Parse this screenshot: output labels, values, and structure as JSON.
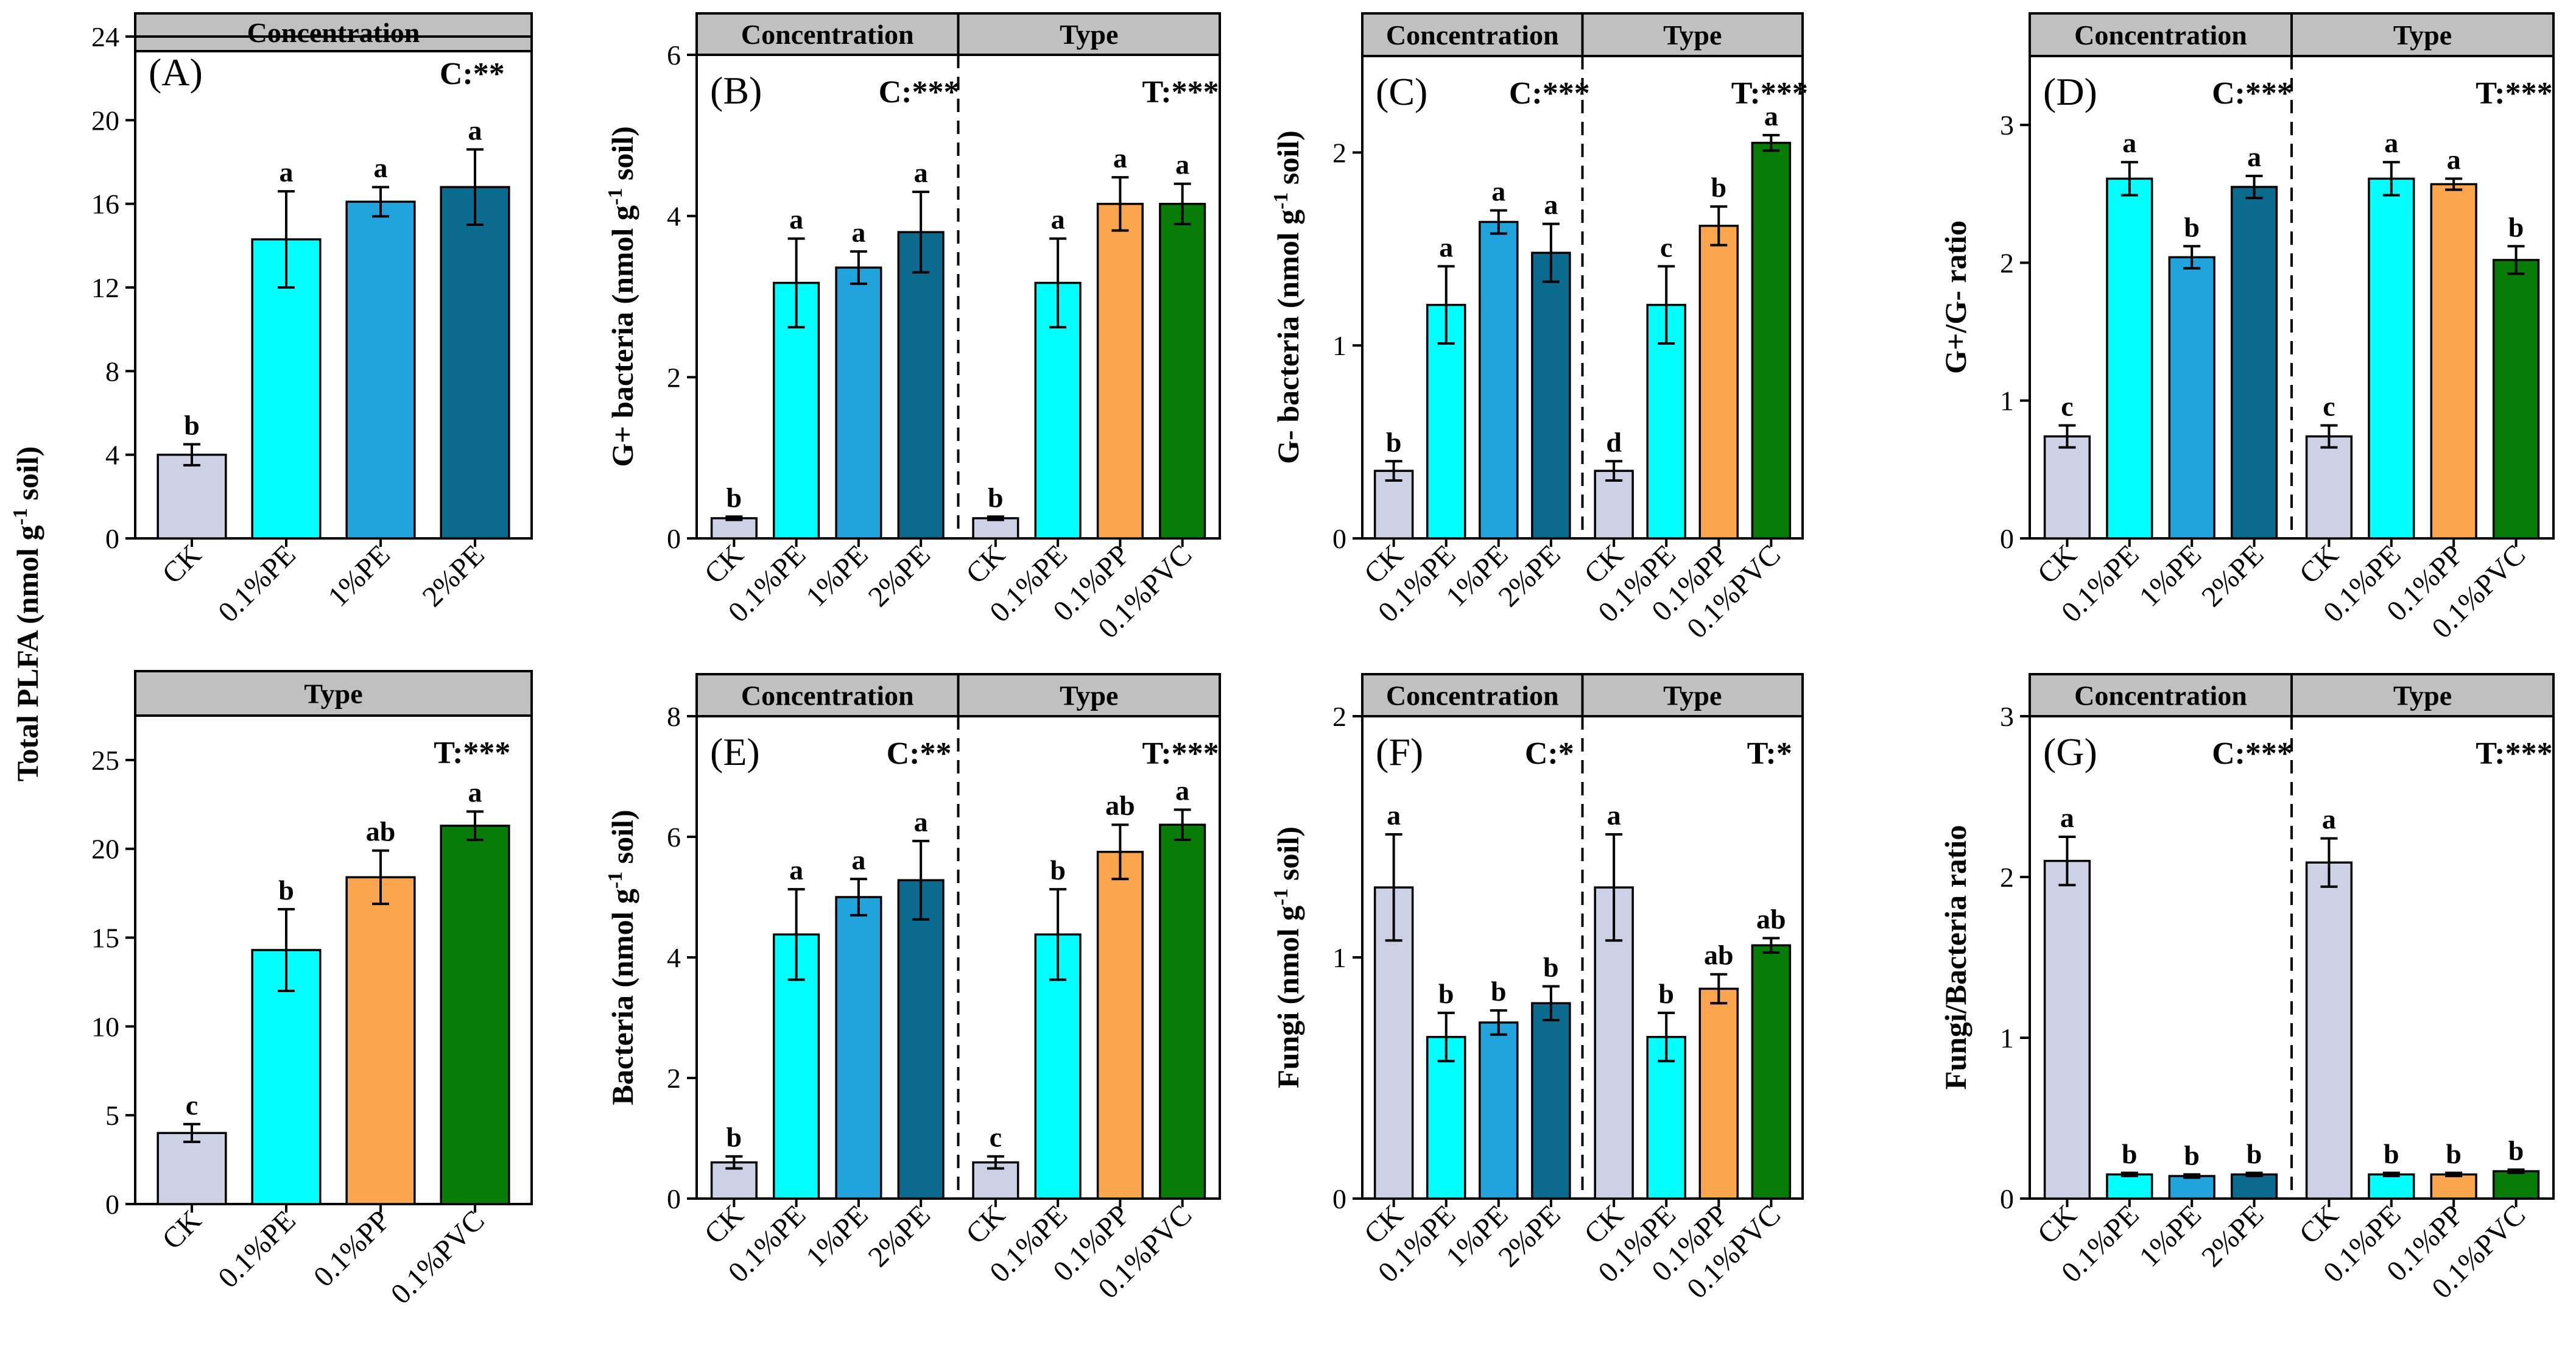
{
  "figure_texts": {
    "shared_ylabel": "Total PLFA (nmol g",
    "shared_ylabel_sup": "-1",
    "shared_ylabel_tail": " soil)"
  },
  "colors": {
    "CK": "#cdd1e6",
    "0.1%PE": "#00ffff",
    "1%PE": "#21a3de",
    "2%PE": "#0b6b8e",
    "0.1%PP": "#fba54f",
    "0.1%PVC": "#077c07",
    "header": "#c0c0c0"
  },
  "chart_data": [
    {
      "id": "A",
      "type": "bar",
      "panel_label": "(A)",
      "ylabel": null,
      "ylim": [
        0,
        24
      ],
      "yticks": [
        "0",
        "4",
        "8",
        "12",
        "16",
        "20",
        "24"
      ],
      "groups": [
        {
          "header": "Concentration",
          "sig": "C:**",
          "categories": [
            "CK",
            "0.1%PE",
            "1%PE",
            "2%PE"
          ],
          "values": [
            4.0,
            14.3,
            16.1,
            16.8
          ],
          "errors": [
            0.5,
            2.3,
            0.7,
            1.8
          ],
          "letters": [
            "b",
            "a",
            "a",
            "a"
          ]
        }
      ]
    },
    {
      "id": "A2",
      "type": "bar",
      "panel_label": "",
      "ylabel": null,
      "ylim": [
        0,
        27.5
      ],
      "yticks": [
        "0",
        "5",
        "10",
        "15",
        "20",
        "25"
      ],
      "groups": [
        {
          "header": "Type",
          "sig": "T:***",
          "categories": [
            "CK",
            "0.1%PE",
            "0.1%PP",
            "0.1%PVC"
          ],
          "values": [
            4.0,
            14.3,
            18.4,
            21.3
          ],
          "errors": [
            0.5,
            2.3,
            1.5,
            0.8
          ],
          "letters": [
            "c",
            "b",
            "ab",
            "a"
          ]
        }
      ]
    },
    {
      "id": "B",
      "type": "bar",
      "panel_label": "(B)",
      "ylabel": "G+ bacteria (nmol g",
      "ylim": [
        0,
        6
      ],
      "yticks": [
        "0",
        "2",
        "4",
        "6"
      ],
      "groups": [
        {
          "header": "Concentration",
          "sig": "C:***",
          "categories": [
            "CK",
            "0.1%PE",
            "1%PE",
            "2%PE"
          ],
          "values": [
            0.25,
            3.17,
            3.36,
            3.8
          ],
          "errors": [
            0.02,
            0.55,
            0.2,
            0.5
          ],
          "letters": [
            "b",
            "a",
            "a",
            "a"
          ]
        },
        {
          "header": "Type",
          "sig": "T:***",
          "categories": [
            "CK",
            "0.1%PE",
            "0.1%PP",
            "0.1%PVC"
          ],
          "values": [
            0.25,
            3.17,
            4.15,
            4.15
          ],
          "errors": [
            0.02,
            0.55,
            0.33,
            0.25
          ],
          "letters": [
            "b",
            "a",
            "a",
            "a"
          ]
        }
      ]
    },
    {
      "id": "C",
      "type": "bar",
      "panel_label": "(C)",
      "ylabel": "G- bacteria (nmol g",
      "ylim": [
        0,
        2.5
      ],
      "yticks": [
        "0",
        "1",
        "2"
      ],
      "groups": [
        {
          "header": "Concentration",
          "sig": "C:***",
          "categories": [
            "CK",
            "0.1%PE",
            "1%PE",
            "2%PE"
          ],
          "values": [
            0.35,
            1.21,
            1.64,
            1.48
          ],
          "errors": [
            0.05,
            0.2,
            0.06,
            0.15
          ],
          "letters": [
            "b",
            "a",
            "a",
            "a"
          ]
        },
        {
          "header": "Type",
          "sig": "T:***",
          "categories": [
            "CK",
            "0.1%PE",
            "0.1%PP",
            "0.1%PVC"
          ],
          "values": [
            0.35,
            1.21,
            1.62,
            2.05
          ],
          "errors": [
            0.05,
            0.2,
            0.1,
            0.04
          ],
          "letters": [
            "d",
            "c",
            "b",
            "a"
          ]
        }
      ]
    },
    {
      "id": "D",
      "type": "bar",
      "panel_label": "(D)",
      "ylabel": "G+/G- ratio",
      "ylim": [
        0,
        3.5
      ],
      "yticks": [
        "0",
        "1",
        "2",
        "3"
      ],
      "groups": [
        {
          "header": "Concentration",
          "sig": "C:***",
          "categories": [
            "CK",
            "0.1%PE",
            "1%PE",
            "2%PE"
          ],
          "values": [
            0.74,
            2.61,
            2.04,
            2.55
          ],
          "errors": [
            0.08,
            0.12,
            0.08,
            0.08
          ],
          "letters": [
            "c",
            "a",
            "b",
            "a"
          ]
        },
        {
          "header": "Type",
          "sig": "T:***",
          "categories": [
            "CK",
            "0.1%PE",
            "0.1%PP",
            "0.1%PVC"
          ],
          "values": [
            0.74,
            2.61,
            2.57,
            2.02
          ],
          "errors": [
            0.08,
            0.12,
            0.04,
            0.1
          ],
          "letters": [
            "c",
            "a",
            "a",
            "b"
          ]
        }
      ]
    },
    {
      "id": "E",
      "type": "bar",
      "panel_label": "(E)",
      "ylabel": "Bacteria (nmol g",
      "ylim": [
        0,
        8
      ],
      "yticks": [
        "0",
        "2",
        "4",
        "6",
        "8"
      ],
      "groups": [
        {
          "header": "Concentration",
          "sig": "C:**",
          "categories": [
            "CK",
            "0.1%PE",
            "1%PE",
            "2%PE"
          ],
          "values": [
            0.6,
            4.38,
            5.0,
            5.28
          ],
          "errors": [
            0.1,
            0.75,
            0.3,
            0.65
          ],
          "letters": [
            "b",
            "a",
            "a",
            "a"
          ]
        },
        {
          "header": "Type",
          "sig": "T:***",
          "categories": [
            "CK",
            "0.1%PE",
            "0.1%PP",
            "0.1%PVC"
          ],
          "values": [
            0.6,
            4.38,
            5.75,
            6.2
          ],
          "errors": [
            0.1,
            0.75,
            0.45,
            0.25
          ],
          "letters": [
            "c",
            "b",
            "ab",
            "a"
          ]
        }
      ]
    },
    {
      "id": "F",
      "type": "bar",
      "panel_label": "(F)",
      "ylabel": "Fungi (nmol g",
      "ylim": [
        0,
        2
      ],
      "yticks": [
        "0",
        "1",
        "2"
      ],
      "groups": [
        {
          "header": "Concentration",
          "sig": "C:*",
          "categories": [
            "CK",
            "0.1%PE",
            "1%PE",
            "2%PE"
          ],
          "values": [
            1.29,
            0.67,
            0.73,
            0.81
          ],
          "errors": [
            0.22,
            0.1,
            0.05,
            0.07
          ],
          "letters": [
            "a",
            "b",
            "b",
            "b"
          ]
        },
        {
          "header": "Type",
          "sig": "T:*",
          "categories": [
            "CK",
            "0.1%PE",
            "0.1%PP",
            "0.1%PVC"
          ],
          "values": [
            1.29,
            0.67,
            0.87,
            1.05
          ],
          "errors": [
            0.22,
            0.1,
            0.06,
            0.03
          ],
          "letters": [
            "a",
            "b",
            "ab",
            "ab"
          ]
        }
      ]
    },
    {
      "id": "G",
      "type": "bar",
      "panel_label": "(G)",
      "ylabel": "Fungi/Bacteria ratio",
      "ylim": [
        0,
        3
      ],
      "yticks": [
        "0",
        "1",
        "2",
        "3"
      ],
      "groups": [
        {
          "header": "Concentration",
          "sig": "C:***",
          "categories": [
            "CK",
            "0.1%PE",
            "1%PE",
            "2%PE"
          ],
          "values": [
            2.1,
            0.15,
            0.14,
            0.15
          ],
          "errors": [
            0.15,
            0.01,
            0.01,
            0.01
          ],
          "letters": [
            "a",
            "b",
            "b",
            "b"
          ]
        },
        {
          "header": "Type",
          "sig": "T:***",
          "categories": [
            "CK",
            "0.1%PE",
            "0.1%PP",
            "0.1%PVC"
          ],
          "values": [
            2.09,
            0.15,
            0.15,
            0.17
          ],
          "errors": [
            0.15,
            0.01,
            0.01,
            0.01
          ],
          "letters": [
            "a",
            "b",
            "b",
            "b"
          ]
        }
      ]
    }
  ]
}
